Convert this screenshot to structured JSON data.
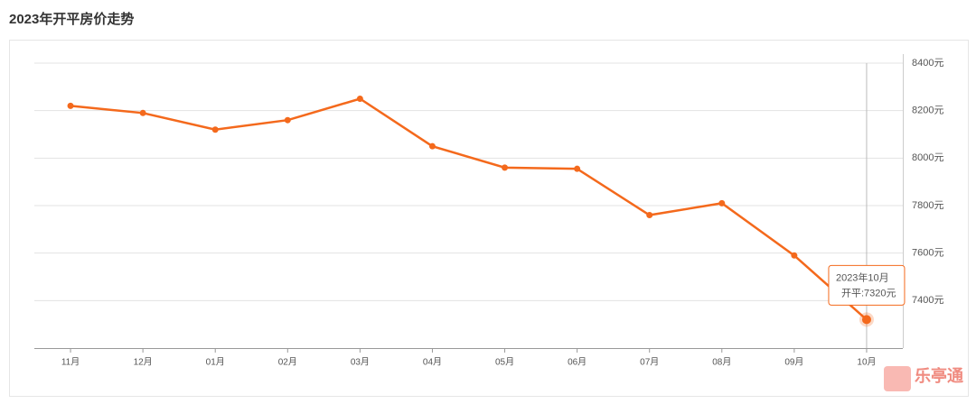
{
  "chart_data": {
    "type": "line",
    "title": "2023年开平房价走势",
    "categories": [
      "11月",
      "12月",
      "01月",
      "02月",
      "03月",
      "04月",
      "05月",
      "06月",
      "07月",
      "08月",
      "09月",
      "10月"
    ],
    "series": [
      {
        "name": "开平",
        "color": "#f4691c",
        "values": [
          8220,
          8190,
          8120,
          8160,
          8250,
          8050,
          7960,
          7955,
          7760,
          7810,
          7590,
          7320
        ]
      }
    ],
    "ylim": [
      7200,
      8400
    ],
    "yticks": [
      {
        "value": 7400,
        "label": "7400元"
      },
      {
        "value": 7600,
        "label": "7600元"
      },
      {
        "value": 7800,
        "label": "7800元"
      },
      {
        "value": 8000,
        "label": "8000元"
      },
      {
        "value": 8200,
        "label": "8200元"
      },
      {
        "value": 8400,
        "label": "8400元"
      }
    ],
    "grid": true,
    "tooltip": {
      "title": "2023年10月",
      "text": "开平:7320元"
    },
    "watermark": "乐亭通"
  }
}
